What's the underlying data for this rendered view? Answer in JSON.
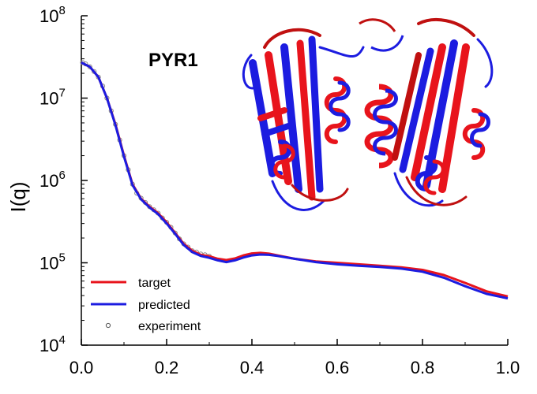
{
  "chart_data": {
    "type": "line",
    "title": "PYR1",
    "xlabel": "",
    "ylabel": "I(q)",
    "xlim": [
      0.0,
      1.0
    ],
    "ylim": [
      10000,
      100000000
    ],
    "yscale": "log",
    "grid": false,
    "legend_position": "bottom-left",
    "x_ticks": [
      "0.0",
      "0.2",
      "0.4",
      "0.6",
      "0.8",
      "1.0"
    ],
    "y_ticks": [
      {
        "base": "10",
        "exp": "4"
      },
      {
        "base": "10",
        "exp": "5"
      },
      {
        "base": "10",
        "exp": "6"
      },
      {
        "base": "10",
        "exp": "7"
      },
      {
        "base": "10",
        "exp": "8"
      }
    ],
    "series": [
      {
        "name": "target",
        "color": "#e8141c",
        "style": "line",
        "x": [
          0.0,
          0.02,
          0.04,
          0.06,
          0.08,
          0.1,
          0.12,
          0.14,
          0.16,
          0.18,
          0.2,
          0.22,
          0.24,
          0.26,
          0.28,
          0.3,
          0.32,
          0.34,
          0.36,
          0.38,
          0.4,
          0.42,
          0.44,
          0.46,
          0.5,
          0.55,
          0.6,
          0.65,
          0.7,
          0.75,
          0.8,
          0.85,
          0.9,
          0.95,
          1.0
        ],
        "y": [
          27000000,
          24000000,
          18000000,
          10000000,
          4800000,
          2000000,
          900000,
          600000,
          480000,
          400000,
          310000,
          230000,
          170000,
          140000,
          125000,
          120000,
          112000,
          108000,
          113000,
          123000,
          130000,
          132000,
          129000,
          123000,
          112000,
          104000,
          100000,
          96000,
          92000,
          88000,
          82000,
          71000,
          57000,
          45000,
          39000
        ]
      },
      {
        "name": "predicted",
        "color": "#1c1ce0",
        "style": "line",
        "x": [
          0.0,
          0.02,
          0.04,
          0.06,
          0.08,
          0.1,
          0.12,
          0.14,
          0.16,
          0.18,
          0.2,
          0.22,
          0.24,
          0.26,
          0.28,
          0.3,
          0.32,
          0.34,
          0.36,
          0.38,
          0.4,
          0.42,
          0.44,
          0.46,
          0.5,
          0.55,
          0.6,
          0.65,
          0.7,
          0.75,
          0.8,
          0.85,
          0.9,
          0.95,
          1.0
        ],
        "y": [
          27000000,
          24000000,
          18000000,
          10000000,
          4700000,
          1950000,
          880000,
          590000,
          470000,
          390000,
          300000,
          225000,
          165000,
          135000,
          121000,
          115000,
          107000,
          102000,
          107000,
          116000,
          123000,
          126000,
          125000,
          121000,
          112000,
          102000,
          96000,
          92000,
          89000,
          85000,
          78000,
          66000,
          52000,
          42000,
          37000
        ]
      },
      {
        "name": "experiment",
        "color": "#8a8a8a",
        "style": "markers",
        "x": [
          0.003,
          0.01,
          0.02,
          0.03,
          0.04,
          0.05,
          0.06,
          0.07,
          0.08,
          0.09,
          0.1,
          0.11,
          0.12,
          0.13,
          0.14,
          0.15,
          0.16,
          0.17,
          0.18,
          0.19,
          0.2,
          0.21,
          0.22,
          0.23,
          0.24,
          0.25,
          0.26,
          0.27,
          0.28,
          0.29,
          0.3
        ],
        "y": [
          27000000,
          26000000,
          24000000,
          21000000,
          18000000,
          14000000,
          10000000,
          7000000,
          4800000,
          3100000,
          2000000,
          1350000,
          900000,
          700000,
          610000,
          540000,
          480000,
          440000,
          400000,
          350000,
          310000,
          270000,
          230000,
          195000,
          170000,
          155000,
          140000,
          135000,
          128000,
          125000,
          120000
        ]
      }
    ]
  }
}
